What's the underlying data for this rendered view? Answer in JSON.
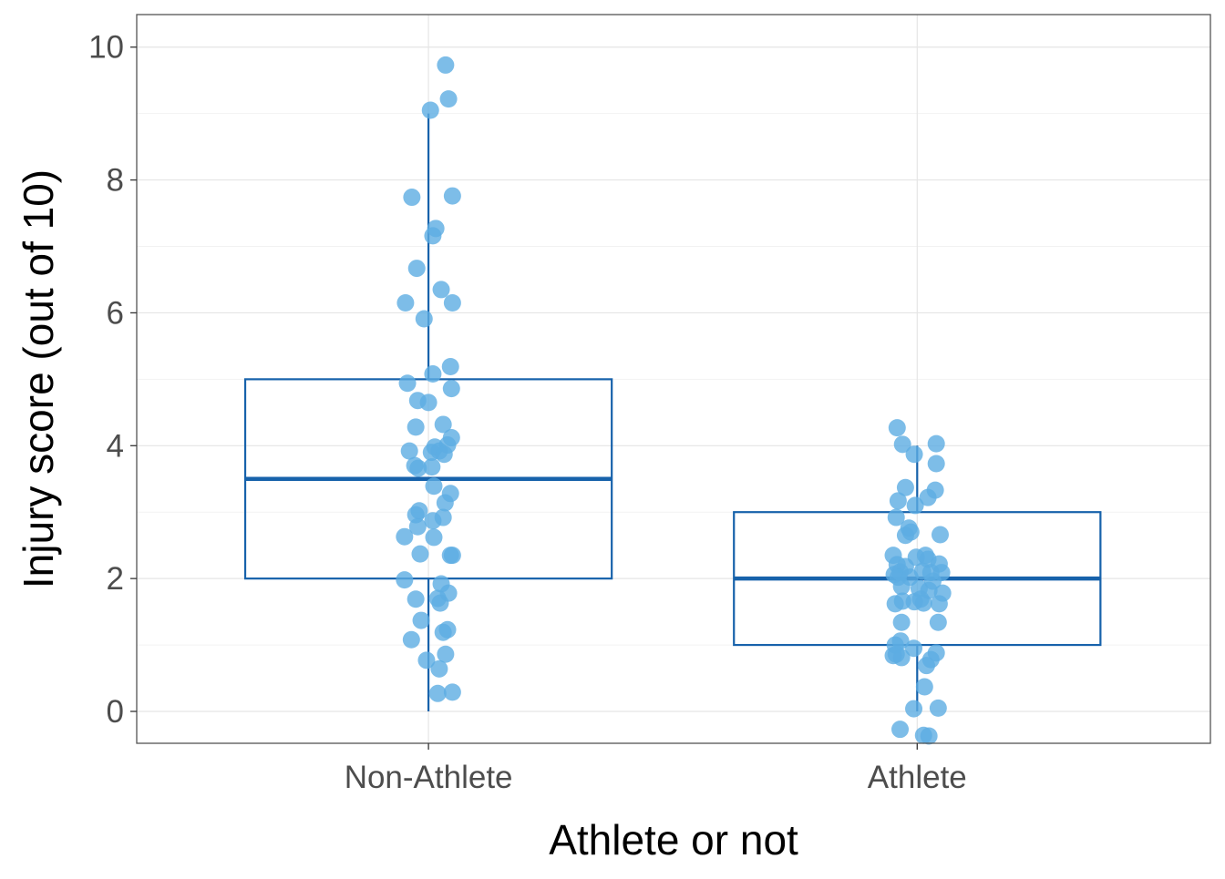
{
  "chart_data": {
    "type": "box",
    "title": "",
    "xlabel": "Athlete or not",
    "ylabel": "Injury score (out of 10)",
    "categories": [
      "Non-Athlete",
      "Athlete"
    ],
    "ylim": [
      -0.48,
      10.49
    ],
    "xlim": [
      0.403,
      2.6
    ],
    "yticks": [
      0,
      2,
      4,
      6,
      8,
      10
    ],
    "ytick_labels": [
      "0",
      "2",
      "4",
      "6",
      "8",
      "10"
    ],
    "grid": true,
    "colors": {
      "box": "#1762AB",
      "points": "#5DADE2",
      "grid": "#E5E5E5",
      "grid_minor": "#F2F2F2",
      "frame": "#555555"
    },
    "boxes": [
      {
        "category": "Non-Athlete",
        "whisker_low": 0,
        "q1": 2,
        "median": 3.5,
        "q3": 5,
        "whisker_high": 9
      },
      {
        "category": "Athlete",
        "whisker_low": 0,
        "q1": 1,
        "median": 2,
        "q3": 3,
        "whisker_high": 4
      }
    ],
    "points": [
      {
        "category": "Non-Athlete",
        "jitter": [
          0.035,
          0.041,
          0.004,
          -0.034,
          0.049,
          0.015,
          0.009,
          -0.024,
          0.026,
          -0.047,
          0.049,
          -0.009,
          0.009,
          0.045,
          -0.043,
          -0.022,
          0,
          0.047,
          0.03,
          -0.026,
          0.047,
          -0.039,
          0.039,
          0.013,
          0.006,
          0.022,
          0.032,
          -0.028,
          -0.021,
          0.007,
          0.011,
          0.045,
          0.034,
          -0.019,
          -0.026,
          0.03,
          0.009,
          -0.022,
          -0.049,
          0.011,
          -0.017,
          0.045,
          0.049,
          -0.049,
          0.026,
          0.019,
          -0.026,
          0.041,
          0.024,
          -0.015,
          0.03,
          0.039,
          -0.035,
          0.035,
          -0.004,
          0.022,
          0.019,
          0.049
        ],
        "values": [
          9.73,
          9.22,
          9.05,
          7.74,
          7.76,
          7.27,
          7.16,
          6.67,
          6.35,
          6.15,
          6.15,
          5.91,
          5.08,
          5.19,
          4.94,
          4.68,
          4.65,
          4.86,
          4.32,
          4.28,
          4.12,
          3.92,
          4.01,
          3.98,
          3.9,
          3.92,
          3.87,
          3.7,
          3.66,
          3.68,
          3.39,
          3.28,
          3.14,
          3.02,
          2.96,
          2.92,
          2.87,
          2.78,
          2.63,
          2.62,
          2.37,
          2.35,
          2.35,
          1.98,
          1.92,
          1.7,
          1.69,
          1.78,
          1.63,
          1.37,
          1.19,
          1.23,
          1.08,
          0.86,
          0.77,
          0.64,
          0.27,
          0.29
        ]
      },
      {
        "category": "Athlete",
        "jitter": [
          -0.041,
          -0.03,
          0.039,
          -0.006,
          0.039,
          -0.024,
          0.022,
          0.037,
          -0.039,
          -0.004,
          -0.043,
          -0.017,
          -0.013,
          -0.024,
          0.047,
          -0.049,
          -0.002,
          0.017,
          0.022,
          -0.041,
          -0.024,
          0.045,
          -0.035,
          0.011,
          0.028,
          0.05,
          -0.047,
          -0.039,
          -0.015,
          0.032,
          -0.032,
          0.004,
          0.024,
          0.052,
          -0.03,
          -0.006,
          0.013,
          -0.045,
          0.045,
          0.007,
          -0.032,
          0.043,
          -0.034,
          -0.045,
          -0.007,
          0.039,
          -0.049,
          -0.032,
          -0.043,
          0.028,
          0.019,
          0.015,
          -0.007,
          0.043,
          -0.035,
          0.013,
          0.024
        ],
        "values": [
          4.27,
          4.02,
          4.03,
          3.87,
          3.73,
          3.37,
          3.22,
          3.33,
          3.17,
          3.1,
          2.92,
          2.76,
          2.7,
          2.65,
          2.66,
          2.35,
          2.32,
          2.35,
          2.29,
          2.21,
          2.18,
          2.22,
          2.1,
          2.11,
          2.09,
          2.09,
          2.06,
          2.02,
          2.02,
          1.96,
          1.88,
          1.85,
          1.82,
          1.78,
          1.66,
          1.65,
          1.63,
          1.62,
          1.62,
          1.69,
          1.34,
          1.34,
          1.06,
          1.0,
          0.95,
          0.88,
          0.84,
          0.81,
          0.86,
          0.78,
          0.69,
          0.37,
          0.04,
          0.05,
          -0.27,
          -0.36,
          -0.37
        ]
      }
    ]
  }
}
